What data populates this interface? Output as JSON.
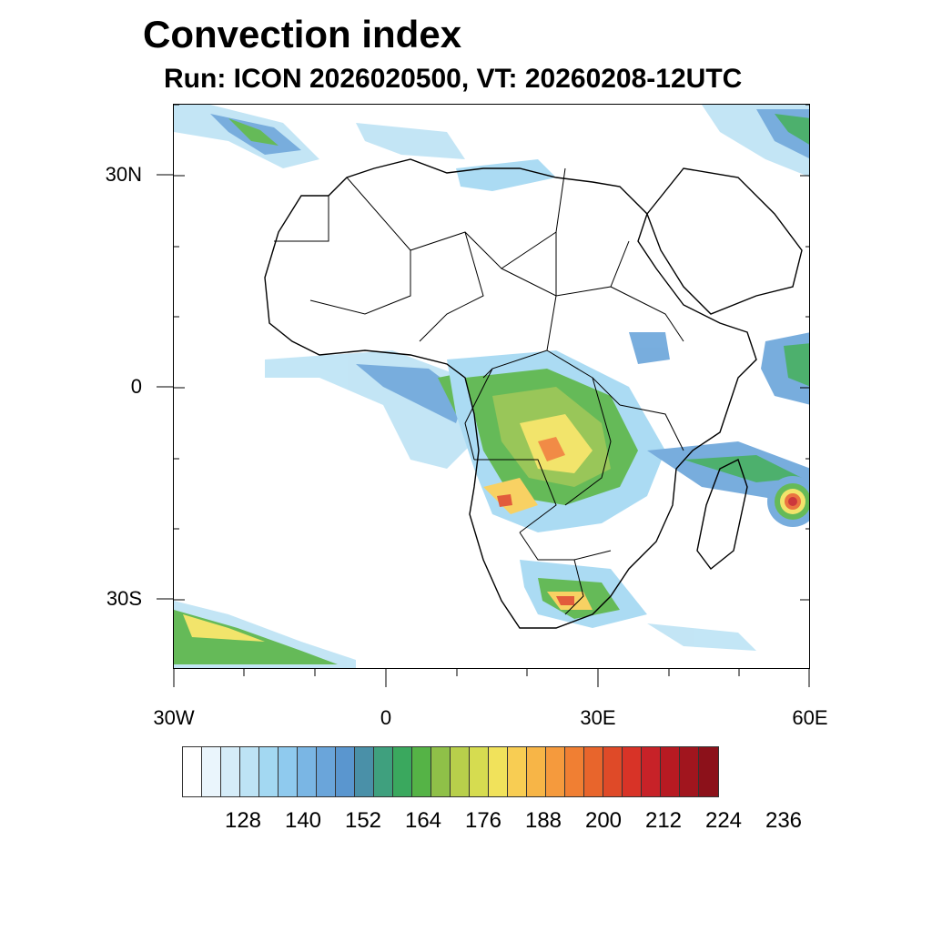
{
  "title": "Convection index",
  "subtitle": "Run: ICON 2026020500,  VT: 20260208-12UTC",
  "map": {
    "lat_labels": [
      "30N",
      "0",
      "30S"
    ],
    "lon_labels": [
      "30W",
      "0",
      "30E",
      "60E"
    ],
    "lon_range": [
      -30,
      60
    ],
    "lat_range": [
      -40,
      40
    ]
  },
  "colorbar": {
    "colors": [
      "#ffffff",
      "#eaf5fc",
      "#d5ecf8",
      "#bde3f5",
      "#a3d8f2",
      "#8fcaee",
      "#7ab6e4",
      "#6aa5da",
      "#5a96cf",
      "#4a90a8",
      "#3fa07e",
      "#3aa85e",
      "#55b346",
      "#8fc048",
      "#b8cf4b",
      "#d6dc50",
      "#f1e25b",
      "#f8cd53",
      "#f7b547",
      "#f59a3d",
      "#f07f33",
      "#e8652c",
      "#df4a28",
      "#d83327",
      "#c72228",
      "#b71a22",
      "#a1151e",
      "#8c111a"
    ],
    "labels": [
      "128",
      "140",
      "152",
      "164",
      "176",
      "188",
      "200",
      "212",
      "224",
      "236"
    ]
  }
}
